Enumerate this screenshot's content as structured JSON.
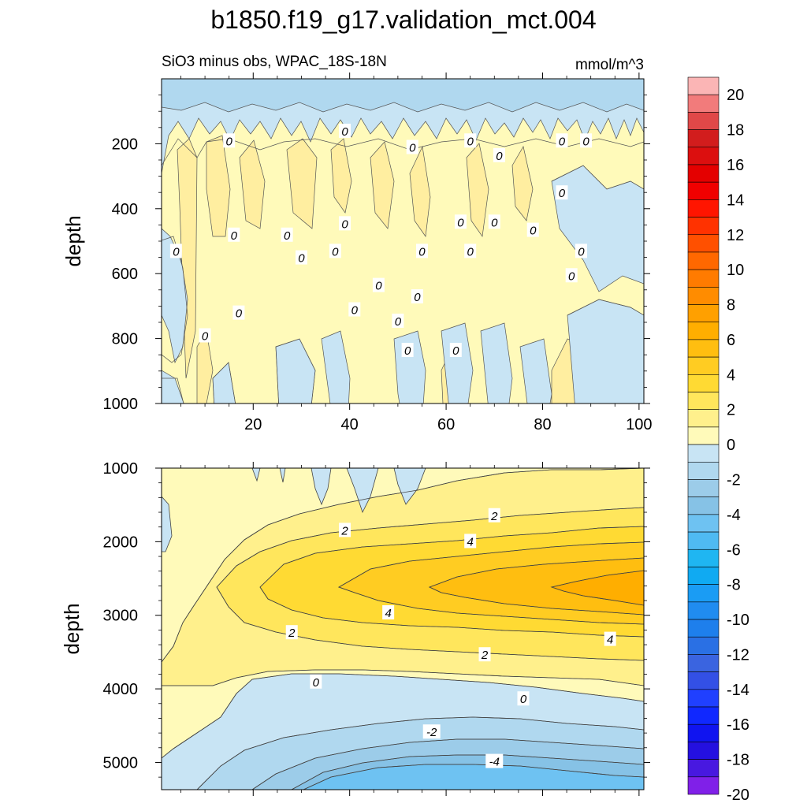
{
  "title": "b1850.f19_g17.validation_mct.004",
  "subtitle_left": "SiO3 minus obs, WPAC_18S-18N",
  "subtitle_right": "mmol/m^3",
  "chart_data": [
    {
      "type": "contour",
      "name": "upper-panel",
      "ylabel": "depth",
      "xlim": [
        1,
        101
      ],
      "ylim": [
        1000,
        0
      ],
      "x_ticks": [
        "20",
        "40",
        "60",
        "80",
        "100"
      ],
      "x_tick_values": [
        20,
        40,
        60,
        80,
        100
      ],
      "y_ticks": [
        "200",
        "400",
        "600",
        "800",
        "1000"
      ],
      "y_tick_values": [
        200,
        400,
        600,
        800,
        1000
      ],
      "contour_labels": [
        {
          "text": "0",
          "x": 15,
          "y": 190
        },
        {
          "text": "0",
          "x": 39,
          "y": 160
        },
        {
          "text": "0",
          "x": 53,
          "y": 210
        },
        {
          "text": "0",
          "x": 65,
          "y": 190
        },
        {
          "text": "0",
          "x": 71,
          "y": 235
        },
        {
          "text": "0",
          "x": 84,
          "y": 190
        },
        {
          "text": "0",
          "x": 89,
          "y": 190
        },
        {
          "text": "0",
          "x": 84,
          "y": 350
        },
        {
          "text": "0",
          "x": 16,
          "y": 480
        },
        {
          "text": "0",
          "x": 27,
          "y": 480
        },
        {
          "text": "0",
          "x": 39,
          "y": 445
        },
        {
          "text": "0",
          "x": 63,
          "y": 440
        },
        {
          "text": "0",
          "x": 70,
          "y": 440
        },
        {
          "text": "0",
          "x": 78,
          "y": 465
        },
        {
          "text": "0",
          "x": 4,
          "y": 530
        },
        {
          "text": "0",
          "x": 30,
          "y": 550
        },
        {
          "text": "0",
          "x": 37,
          "y": 530
        },
        {
          "text": "0",
          "x": 55,
          "y": 530
        },
        {
          "text": "0",
          "x": 65,
          "y": 530
        },
        {
          "text": "0",
          "x": 88,
          "y": 530
        },
        {
          "text": "0",
          "x": 86,
          "y": 605
        },
        {
          "text": "0",
          "x": 46,
          "y": 635
        },
        {
          "text": "0",
          "x": 54,
          "y": 670
        },
        {
          "text": "0",
          "x": 17,
          "y": 720
        },
        {
          "text": "0",
          "x": 41,
          "y": 710
        },
        {
          "text": "0",
          "x": 50,
          "y": 745
        },
        {
          "text": "0",
          "x": 10,
          "y": 790
        },
        {
          "text": "0",
          "x": 52,
          "y": 835
        },
        {
          "text": "0",
          "x": 62,
          "y": 835
        }
      ]
    },
    {
      "type": "contour",
      "name": "lower-panel",
      "ylabel": "depth",
      "xlim": [
        1,
        101
      ],
      "ylim": [
        5370,
        1000
      ],
      "y_ticks": [
        "1000",
        "2000",
        "3000",
        "4000",
        "5000"
      ],
      "y_tick_values": [
        1000,
        2000,
        3000,
        4000,
        5000
      ],
      "levels": [
        0,
        1,
        2,
        3,
        4,
        5,
        6
      ],
      "negative_levels": [
        0,
        -1,
        -2,
        -3,
        -4
      ],
      "contour_labels": [
        {
          "text": "2",
          "x": 39,
          "y": 1840
        },
        {
          "text": "2",
          "x": 70,
          "y": 1640
        },
        {
          "text": "4",
          "x": 65,
          "y": 1990
        },
        {
          "text": "4",
          "x": 48,
          "y": 2960
        },
        {
          "text": "2",
          "x": 28,
          "y": 3230
        },
        {
          "text": "4",
          "x": 94,
          "y": 3320
        },
        {
          "text": "2",
          "x": 68,
          "y": 3530
        },
        {
          "text": "0",
          "x": 33,
          "y": 3900
        },
        {
          "text": "0",
          "x": 76,
          "y": 4130
        },
        {
          "text": "-2",
          "x": 57,
          "y": 4580
        },
        {
          "text": "-4",
          "x": 70,
          "y": 4980
        }
      ]
    }
  ],
  "colorbar": {
    "labels": [
      "20",
      "18",
      "16",
      "14",
      "12",
      "10",
      "8",
      "6",
      "4",
      "2",
      "0",
      "-2",
      "-4",
      "-6",
      "-8",
      "-10",
      "-12",
      "-14",
      "-16",
      "-18",
      "-20"
    ],
    "colors": [
      "#fbb5b5",
      "#f27b7b",
      "#e04848",
      "#d21d1d",
      "#dc0f0f",
      "#e40000",
      "#f00000",
      "#ff1500",
      "#ff3200",
      "#ff5000",
      "#ff6800",
      "#ff7b00",
      "#ff8c00",
      "#ffa000",
      "#ffae00",
      "#ffbe10",
      "#ffcc22",
      "#ffda33",
      "#ffe65c",
      "#fff08c",
      "#fffaba",
      "#c8e4f4",
      "#b0d8ef",
      "#9ccce9",
      "#86c2e6",
      "#6ec2f2",
      "#4fbaf2",
      "#1fb6f2",
      "#10aaf2",
      "#1a9cf4",
      "#208cf0",
      "#1e7fec",
      "#2a70e4",
      "#3a64e0",
      "#3350e6",
      "#2040ff",
      "#1028ff",
      "#1014f0",
      "#2410e0",
      "#4818e0",
      "#8020e8"
    ]
  }
}
